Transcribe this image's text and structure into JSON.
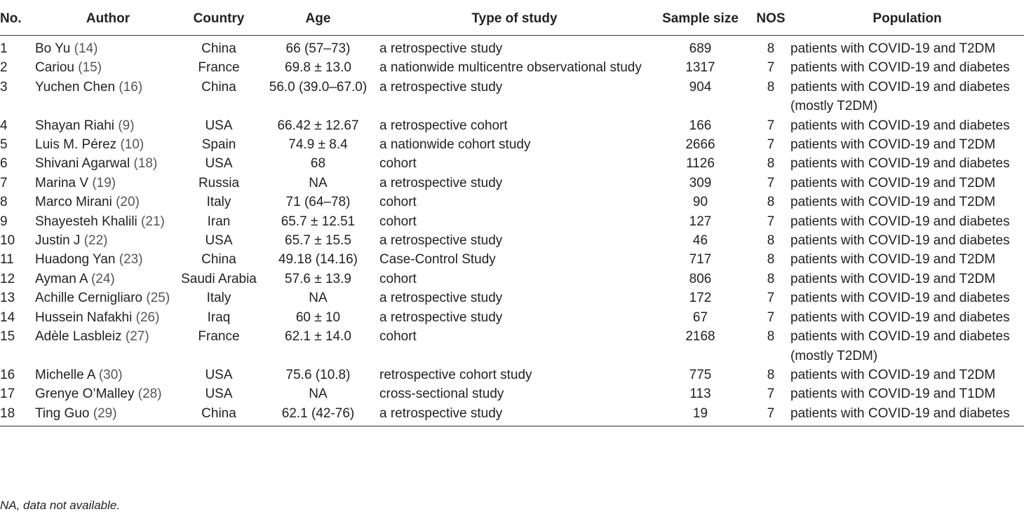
{
  "headers": {
    "no": "No.",
    "author": "Author",
    "country": "Country",
    "age": "Age",
    "type": "Type of study",
    "sample": "Sample size",
    "nos": "NOS",
    "population": "Population"
  },
  "rows": [
    {
      "no": "1",
      "author": "Bo Yu",
      "ref": "14",
      "country": "China",
      "age": "66 (57–73)",
      "type": "a retrospective study",
      "sample": "689",
      "nos": "8",
      "population": "patients with COVID-19 and T2DM"
    },
    {
      "no": "2",
      "author": "Cariou",
      "ref": "15",
      "country": "France",
      "age": "69.8 ± 13.0",
      "type": "a nationwide multicentre observational study",
      "sample": "1317",
      "nos": "7",
      "population": "patients with COVID-19 and diabetes"
    },
    {
      "no": "3",
      "author": "Yuchen Chen",
      "ref": "16",
      "country": "China",
      "age": "56.0 (39.0–67.0)",
      "type": "a retrospective study",
      "sample": "904",
      "nos": "8",
      "population": "patients with COVID-19 and diabetes (mostly T2DM)"
    },
    {
      "no": "4",
      "author": "Shayan Riahi",
      "ref": "9",
      "country": "USA",
      "age": "66.42 ± 12.67",
      "type": "a retrospective cohort",
      "sample": "166",
      "nos": "7",
      "population": "patients with COVID-19 and diabetes"
    },
    {
      "no": "5",
      "author": "Luis M. Pérez",
      "ref": "10",
      "country": "Spain",
      "age": "74.9 ± 8.4",
      "type": "a nationwide cohort study",
      "sample": "2666",
      "nos": "7",
      "population": "patients with COVID-19 and T2DM"
    },
    {
      "no": "6",
      "author": "Shivani Agarwal",
      "ref": "18",
      "country": "USA",
      "age": "68",
      "type": "cohort",
      "sample": "1126",
      "nos": "8",
      "population": "patients with COVID-19 and diabetes"
    },
    {
      "no": "7",
      "author": "Marina V",
      "ref": "19",
      "country": "Russia",
      "age": "NA",
      "type": "a retrospective study",
      "sample": "309",
      "nos": "7",
      "population": "patients with COVID-19 and T2DM"
    },
    {
      "no": "8",
      "author": "Marco Mirani",
      "ref": "20",
      "country": "Italy",
      "age": "71 (64–78)",
      "type": "cohort",
      "sample": "90",
      "nos": "8",
      "population": "patients with COVID-19 and T2DM"
    },
    {
      "no": "9",
      "author": "Shayesteh Khalili",
      "ref": "21",
      "country": "Iran",
      "age": "65.7 ± 12.51",
      "type": "cohort",
      "sample": "127",
      "nos": "7",
      "population": "patients with COVID-19 and diabetes"
    },
    {
      "no": "10",
      "author": "Justin J",
      "ref": "22",
      "country": "USA",
      "age": "65.7 ± 15.5",
      "type": "a retrospective study",
      "sample": "46",
      "nos": "8",
      "population": "patients with COVID-19 and diabetes"
    },
    {
      "no": "11",
      "author": "Huadong Yan",
      "ref": "23",
      "country": "China",
      "age": "49.18 (14.16)",
      "type": "Case-Control Study",
      "sample": "717",
      "nos": "8",
      "population": "patients with COVID-19 and T2DM"
    },
    {
      "no": "12",
      "author": "Ayman A",
      "ref": "24",
      "country": "Saudi Arabia",
      "age": "57.6 ± 13.9",
      "type": "cohort",
      "sample": "806",
      "nos": "8",
      "population": "patients with COVID-19 and T2DM"
    },
    {
      "no": "13",
      "author": "Achille Cernigliaro",
      "ref": "25",
      "country": "Italy",
      "age": "NA",
      "type": "a retrospective study",
      "sample": "172",
      "nos": "7",
      "population": "patients with COVID-19 and diabetes"
    },
    {
      "no": "14",
      "author": "Hussein Nafakhi",
      "ref": "26",
      "country": "Iraq",
      "age": "60 ± 10",
      "type": "a retrospective study",
      "sample": "67",
      "nos": "7",
      "population": "patients with COVID-19 and diabetes"
    },
    {
      "no": "15",
      "author": "Adèle Lasbleiz",
      "ref": "27",
      "country": "France",
      "age": "62.1 ± 14.0",
      "type": "cohort",
      "sample": "2168",
      "nos": "8",
      "population": "patients with COVID-19 and diabetes (mostly T2DM)"
    },
    {
      "no": "16",
      "author": "Michelle A",
      "ref": "30",
      "country": "USA",
      "age": "75.6 (10.8)",
      "type": "retrospective cohort study",
      "sample": "775",
      "nos": "8",
      "population": "patients with COVID-19 and T2DM"
    },
    {
      "no": "17",
      "author": "Grenye O’Malley",
      "ref": "28",
      "country": "USA",
      "age": "NA",
      "type": "cross-sectional study",
      "sample": "113",
      "nos": "7",
      "population": "patients with COVID-19 and T1DM"
    },
    {
      "no": "18",
      "author": "Ting Guo",
      "ref": "29",
      "country": "China",
      "age": "62.1 (42-76)",
      "type": "a retrospective study",
      "sample": "19",
      "nos": "7",
      "population": "patients with COVID-19 and diabetes"
    }
  ],
  "footnote": "NA, data not available."
}
